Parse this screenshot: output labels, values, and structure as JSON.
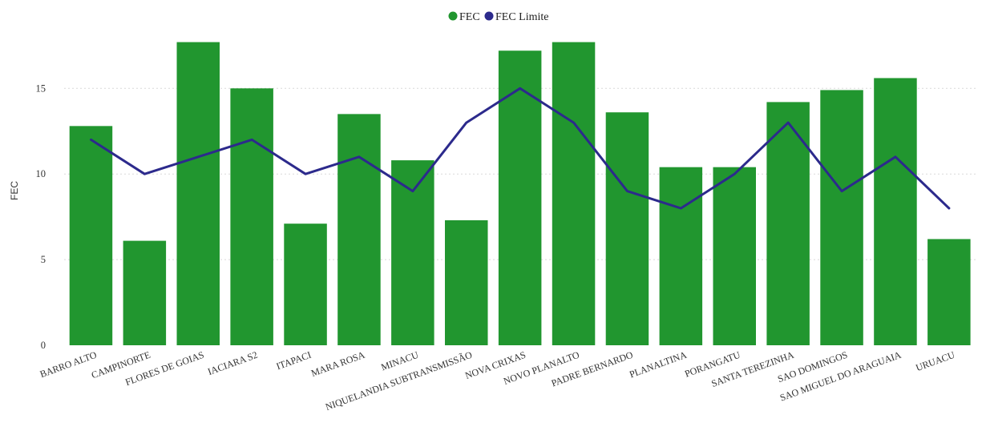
{
  "chart_data": {
    "type": "bar",
    "categories": [
      "BARRO ALTO",
      "CAMPINORTE",
      "FLORES DE GOIAS",
      "IACIARA S2",
      "ITAPACI",
      "MARA ROSA",
      "MINACU",
      "NIQUELANDIA SUBTRANSMISSÃO",
      "NOVA CRIXAS",
      "NOVO PLANALTO",
      "PADRE BERNARDO",
      "PLANALTINA",
      "PORANGATU",
      "SANTA TEREZINHA",
      "SAO DOMINGOS",
      "SAO MIGUEL DO ARAGUAIA",
      "URUACU"
    ],
    "series": [
      {
        "name": "FEC",
        "type": "bar",
        "color": "#21962f",
        "values": [
          12.8,
          6.1,
          17.7,
          15.0,
          7.1,
          13.5,
          10.8,
          7.3,
          17.2,
          17.7,
          13.6,
          10.4,
          10.4,
          14.2,
          14.9,
          15.6,
          6.2
        ]
      },
      {
        "name": "FEC Limite",
        "type": "line",
        "color": "#2c2a8c",
        "values": [
          12,
          10,
          11,
          12,
          10,
          11,
          9,
          13,
          15,
          13,
          9,
          8,
          10,
          13,
          9,
          11,
          8
        ]
      }
    ],
    "ylabel": "FEC",
    "xlabel": "",
    "ylim": [
      0,
      18
    ],
    "yticks": [
      0,
      5,
      10,
      15
    ],
    "grid": true,
    "legend_position": "top-center"
  }
}
